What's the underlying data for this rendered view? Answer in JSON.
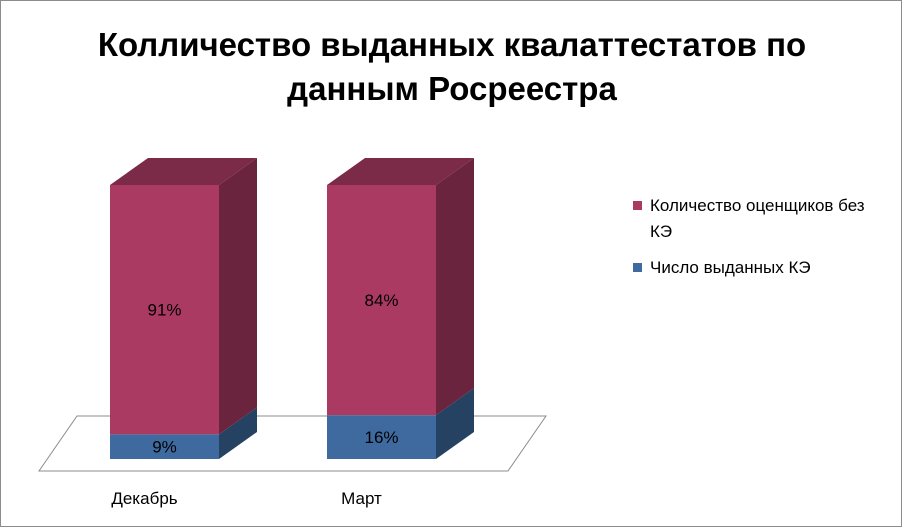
{
  "title_lines": [
    "Колличество выданных квалаттестатов по",
    "данным Росреестра"
  ],
  "chart_data": {
    "type": "bar",
    "stacked": true,
    "percent": true,
    "three_d": true,
    "categories": [
      "Декабрь",
      "Март"
    ],
    "series": [
      {
        "name": "Число выданных КЭ",
        "values": [
          9,
          16
        ],
        "labels": [
          "9%",
          "16%"
        ],
        "color": "#3e6aa0"
      },
      {
        "name": "Количество оценщиков без КЭ",
        "values": [
          91,
          84
        ],
        "labels": [
          "91%",
          "84%"
        ],
        "color": "#ab3a62"
      }
    ],
    "ylim": [
      0,
      100
    ],
    "legend": "right",
    "grid": false
  },
  "legend_items": [
    {
      "label": "Количество оценщиков без КЭ",
      "color": "#ab3a62"
    },
    {
      "label": "Число выданных КЭ",
      "color": "#3e6aa0"
    }
  ]
}
